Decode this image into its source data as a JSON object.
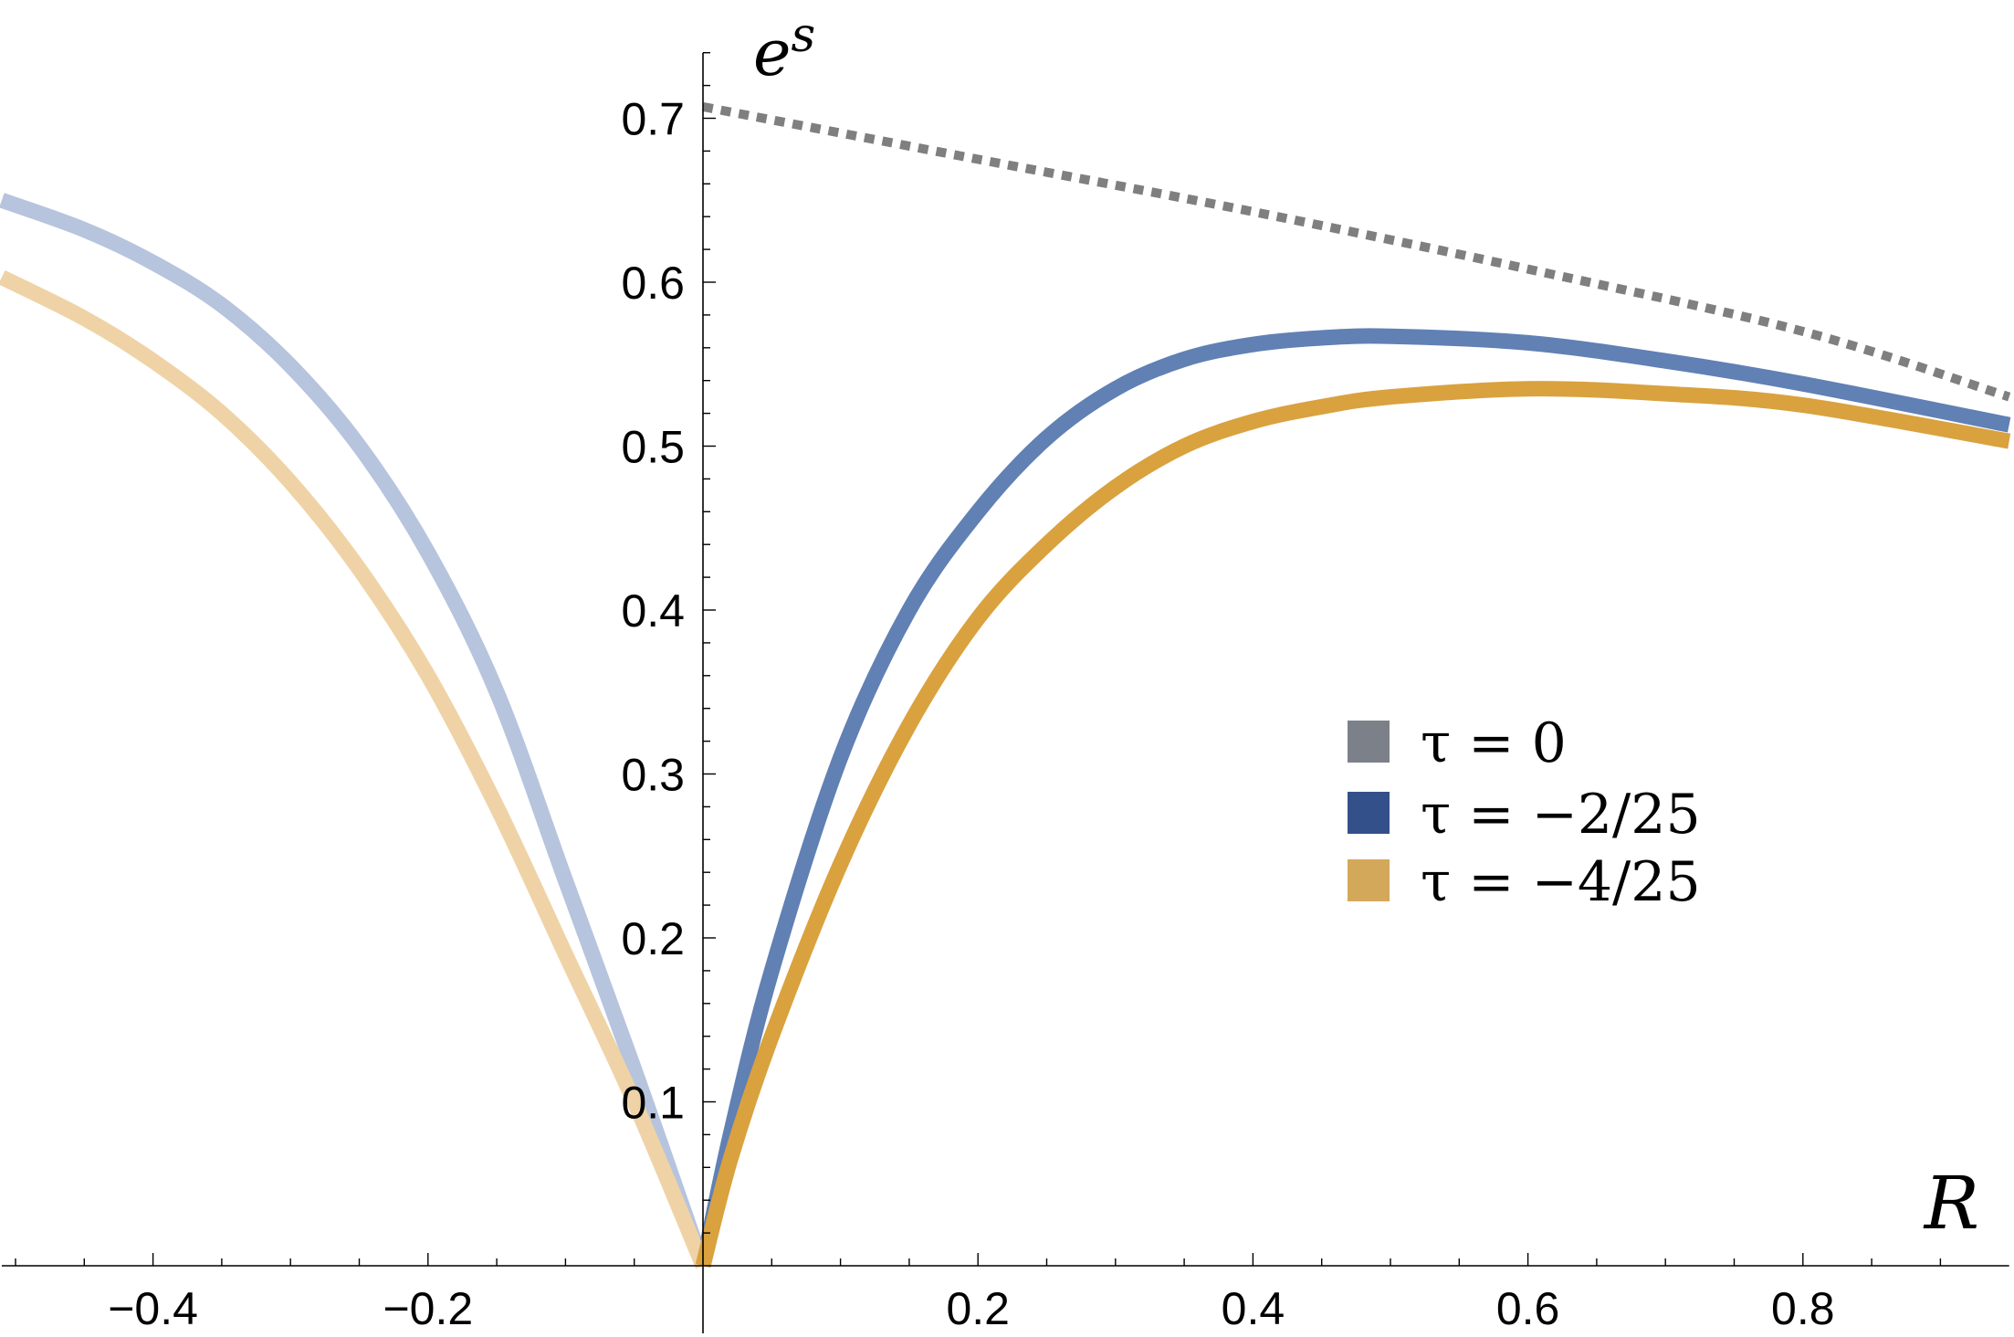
{
  "chart_data": {
    "type": "line",
    "xlabel": "R",
    "ylabel_base": "e",
    "ylabel_sup": "s",
    "xlim": [
      -0.51,
      0.95
    ],
    "ylim": [
      0,
      0.74
    ],
    "xticks": [
      -0.4,
      -0.2,
      0.2,
      0.4,
      0.6,
      0.8
    ],
    "xtick_labels": [
      "−0.4",
      "−0.2",
      "0.2",
      "0.4",
      "0.6",
      "0.8"
    ],
    "yticks": [
      0.1,
      0.2,
      0.3,
      0.4,
      0.5,
      0.6,
      0.7
    ],
    "ytick_labels": [
      "0.1",
      "0.2",
      "0.3",
      "0.4",
      "0.5",
      "0.6",
      "0.7"
    ],
    "legend_position": "right",
    "legend": [
      {
        "label": "τ = 0",
        "color": "#7c8089"
      },
      {
        "label": "τ = −2/25",
        "color": "#34508a"
      },
      {
        "label": "τ = −4/25",
        "color": "#d4a85a"
      }
    ],
    "series": [
      {
        "color": "#7f7f7f",
        "style": "dotted",
        "x": [
          0.0,
          0.2,
          0.4,
          0.6,
          0.8,
          0.95
        ],
        "y": [
          0.707,
          0.675,
          0.643,
          0.608,
          0.57,
          0.53
        ]
      },
      {
        "color": "#6180b4",
        "color_negative": "#b6c4dd",
        "style": "solid",
        "x": [
          -0.51,
          -0.45,
          -0.4,
          -0.35,
          -0.3,
          -0.25,
          -0.2,
          -0.15,
          -0.1,
          -0.05,
          0.0,
          0.02,
          0.05,
          0.1,
          0.15,
          0.2,
          0.25,
          0.3,
          0.35,
          0.4,
          0.45,
          0.5,
          0.6,
          0.7,
          0.8,
          0.95
        ],
        "y": [
          0.65,
          0.632,
          0.612,
          0.586,
          0.549,
          0.5,
          0.435,
          0.35,
          0.235,
          0.12,
          0.0,
          0.08,
          0.18,
          0.31,
          0.4,
          0.46,
          0.505,
          0.535,
          0.553,
          0.562,
          0.566,
          0.567,
          0.563,
          0.552,
          0.538,
          0.513
        ]
      },
      {
        "color": "#d9a23f",
        "color_negative": "#efd3a6",
        "style": "solid",
        "x": [
          -0.51,
          -0.45,
          -0.4,
          -0.35,
          -0.3,
          -0.25,
          -0.2,
          -0.15,
          -0.1,
          -0.05,
          0.0,
          0.02,
          0.05,
          0.1,
          0.15,
          0.2,
          0.25,
          0.3,
          0.35,
          0.4,
          0.45,
          0.5,
          0.6,
          0.7,
          0.8,
          0.95
        ],
        "y": [
          0.603,
          0.578,
          0.552,
          0.52,
          0.478,
          0.425,
          0.36,
          0.28,
          0.19,
          0.1,
          0.0,
          0.065,
          0.14,
          0.245,
          0.33,
          0.395,
          0.44,
          0.475,
          0.5,
          0.515,
          0.524,
          0.53,
          0.535,
          0.532,
          0.525,
          0.503
        ]
      }
    ]
  }
}
